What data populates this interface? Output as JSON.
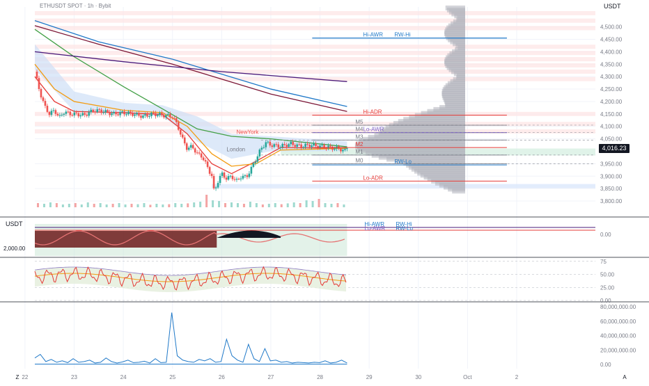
{
  "header": {
    "title": "ETHUSDT SPOT · 1h · Bybit",
    "unit_top": "USDT",
    "unit_panel2": "USDT",
    "current_price": "4,016.23"
  },
  "colors": {
    "bull": "#26a69a",
    "bear": "#ef5350",
    "ema_red": "#e53935",
    "ema_orange": "#f39c12",
    "ema_green": "#43a047",
    "ema_blue": "#1e78c8",
    "ema_maroon": "#7b1535",
    "ema_purple": "#4a1a7a",
    "profile": "#b0b3bb",
    "grid": "#f0f3fa"
  },
  "chart_data": [
    {
      "type": "candlestick",
      "title": "ETHUSDT SPOT · 1h · Bybit",
      "ylabel": "USDT",
      "ylim": [
        3775,
        4580
      ],
      "y_ticks": [
        "4,500.00",
        "4,450.00",
        "4,400.00",
        "4,350.00",
        "4,300.00",
        "4,250.00",
        "4,200.00",
        "4,150.00",
        "4,100.00",
        "4,050.00",
        "3,950.00",
        "3,900.00",
        "3,850.00",
        "3,800.00"
      ],
      "y_tick_values": [
        4500,
        4450,
        4400,
        4350,
        4300,
        4250,
        4200,
        4150,
        4100,
        4050,
        3950,
        3900,
        3850,
        3800
      ],
      "x_ticks": [
        "22",
        "23",
        "24",
        "25",
        "26",
        "27",
        "28",
        "29",
        "30",
        "Oct",
        "2"
      ],
      "x_tick_days": [
        22,
        23,
        24,
        25,
        26,
        27,
        28,
        29,
        30,
        31,
        32
      ],
      "x_range_days": [
        22.2,
        33.6
      ],
      "last_bar_day": 28.55,
      "close_path": [
        [
          22.2,
          4320
        ],
        [
          22.3,
          4240
        ],
        [
          22.4,
          4180
        ],
        [
          22.5,
          4150
        ],
        [
          22.6,
          4165
        ],
        [
          22.7,
          4135
        ],
        [
          22.8,
          4160
        ],
        [
          22.9,
          4150
        ],
        [
          23.0,
          4150
        ],
        [
          23.2,
          4145
        ],
        [
          23.4,
          4165
        ],
        [
          23.6,
          4160
        ],
        [
          23.8,
          4150
        ],
        [
          24.0,
          4155
        ],
        [
          24.2,
          4150
        ],
        [
          24.4,
          4140
        ],
        [
          24.6,
          4150
        ],
        [
          24.8,
          4145
        ],
        [
          25.0,
          4140
        ],
        [
          25.1,
          4105
        ],
        [
          25.2,
          4050
        ],
        [
          25.3,
          4010
        ],
        [
          25.4,
          4020
        ],
        [
          25.5,
          3990
        ],
        [
          25.6,
          3980
        ],
        [
          25.7,
          3940
        ],
        [
          25.8,
          3900
        ],
        [
          25.85,
          3830
        ],
        [
          25.9,
          3870
        ],
        [
          26.0,
          3910
        ],
        [
          26.1,
          3890
        ],
        [
          26.2,
          3900
        ],
        [
          26.3,
          3880
        ],
        [
          26.4,
          3900
        ],
        [
          26.5,
          3895
        ],
        [
          26.6,
          3930
        ],
        [
          26.7,
          3970
        ],
        [
          26.8,
          4010
        ],
        [
          26.9,
          4035
        ],
        [
          27.0,
          4025
        ],
        [
          27.2,
          4020
        ],
        [
          27.4,
          4030
        ],
        [
          27.6,
          4020
        ],
        [
          27.8,
          4025
        ],
        [
          28.0,
          4020
        ],
        [
          28.2,
          4015
        ],
        [
          28.4,
          4010
        ],
        [
          28.5,
          4000
        ],
        [
          28.55,
          4016.23
        ]
      ],
      "moving_averages": [
        {
          "color_key": "ema_red",
          "points": [
            [
              22.2,
              4300
            ],
            [
              22.6,
              4200
            ],
            [
              23.0,
              4160
            ],
            [
              24.0,
              4155
            ],
            [
              24.8,
              4148
            ],
            [
              25.3,
              4070
            ],
            [
              25.8,
              3950
            ],
            [
              26.2,
              3910
            ],
            [
              26.7,
              3960
            ],
            [
              27.2,
              4015
            ],
            [
              28.55,
              4012
            ]
          ]
        },
        {
          "color_key": "ema_orange",
          "points": [
            [
              22.2,
              4350
            ],
            [
              22.6,
              4250
            ],
            [
              23.0,
              4200
            ],
            [
              24.0,
              4165
            ],
            [
              24.8,
              4155
            ],
            [
              25.3,
              4100
            ],
            [
              25.8,
              3990
            ],
            [
              26.2,
              3940
            ],
            [
              26.7,
              3950
            ],
            [
              27.2,
              4005
            ],
            [
              28.55,
              4012
            ]
          ]
        },
        {
          "color_key": "ema_green",
          "points": [
            [
              22.2,
              4490
            ],
            [
              23.0,
              4380
            ],
            [
              24.0,
              4260
            ],
            [
              24.8,
              4170
            ],
            [
              25.5,
              4090
            ],
            [
              26.2,
              4060
            ],
            [
              27.0,
              4050
            ],
            [
              28.55,
              4018
            ]
          ]
        },
        {
          "color_key": "ema_blue",
          "points": [
            [
              22.2,
              4525
            ],
            [
              23.5,
              4440
            ],
            [
              25.0,
              4370
            ],
            [
              26.0,
              4310
            ],
            [
              27.0,
              4250
            ],
            [
              28.55,
              4180
            ]
          ]
        },
        {
          "color_key": "ema_maroon",
          "points": [
            [
              22.2,
              4505
            ],
            [
              23.5,
              4430
            ],
            [
              25.0,
              4350
            ],
            [
              26.0,
              4290
            ],
            [
              27.0,
              4230
            ],
            [
              28.55,
              4160
            ]
          ]
        },
        {
          "color_key": "ema_purple",
          "points": [
            [
              22.2,
              4400
            ],
            [
              24.0,
              4360
            ],
            [
              26.0,
              4320
            ],
            [
              28.55,
              4280
            ]
          ]
        }
      ],
      "levels": [
        {
          "label": "Hi-AWR",
          "value": 4455,
          "color": "#1e78c8"
        },
        {
          "label": "RW-Hi",
          "value": 4455,
          "color": "#1e78c8"
        },
        {
          "label": "Hi-ADR",
          "value": 4145,
          "color": "#e53935"
        },
        {
          "label": "M5",
          "value": 4105,
          "color": "#787b86"
        },
        {
          "label": "M4",
          "value": 4075,
          "color": "#787b86"
        },
        {
          "label": "Lo-AWR",
          "value": 4075,
          "color": "#7b61c8"
        },
        {
          "label": "M3",
          "value": 4045,
          "color": "#787b86"
        },
        {
          "label": "M2",
          "value": 4015,
          "color": "#e53935"
        },
        {
          "label": "M1",
          "value": 3985,
          "color": "#787b86"
        },
        {
          "label": "M0",
          "value": 3950,
          "color": "#787b86"
        },
        {
          "label": "RW-Lo",
          "value": 3945,
          "color": "#1e78c8"
        },
        {
          "label": "Lo-ADR",
          "value": 3880,
          "color": "#e53935"
        }
      ],
      "annotations": [
        "NewYork",
        "London"
      ]
    },
    {
      "type": "bar",
      "title": "volume",
      "values_rel": [
        0.3,
        0.25,
        0.35,
        0.3,
        0.2,
        0.25,
        0.3,
        0.2,
        0.35,
        0.25,
        0.3,
        0.2,
        0.25,
        0.3,
        0.2,
        0.25,
        0.22,
        0.3,
        0.18,
        0.25,
        0.2,
        0.22,
        0.3,
        0.25,
        0.28,
        0.35,
        0.4,
        0.9,
        0.5,
        0.45,
        0.3,
        0.35,
        0.3,
        0.25,
        0.4,
        0.3,
        0.2,
        0.25,
        0.3,
        0.22,
        0.28,
        0.35,
        0.3,
        0.5,
        0.45,
        0.6,
        0.3,
        0.25,
        0.3,
        0.2
      ]
    },
    {
      "type": "area",
      "ylabel": "USDT",
      "y_ticks": [
        "0.00"
      ],
      "y_tick_values": [
        0
      ],
      "left_label": "2,000.00",
      "legend_labels": [
        "Hi-AWR",
        "RW-Hi",
        "Lo-AWR",
        "RW-Lo"
      ]
    },
    {
      "type": "line",
      "y_ticks": [
        "75",
        "50.00",
        "25.00",
        "0.00"
      ],
      "y_tick_values": [
        75,
        50,
        25,
        0
      ],
      "ylim": [
        0,
        80
      ]
    },
    {
      "type": "line",
      "y_ticks": [
        "80,000,000.00",
        "60,000,000.00",
        "40,000,000.00",
        "20,000,000.00",
        "0.00"
      ],
      "y_tick_values": [
        80000000,
        60000000,
        40000000,
        20000000,
        0
      ],
      "ylim": [
        0,
        85000000
      ],
      "values": [
        9000000,
        14000000,
        4000000,
        7000000,
        3000000,
        5000000,
        2500000,
        8000000,
        3000000,
        4000000,
        6000000,
        2000000,
        3000000,
        9000000,
        4000000,
        2000000,
        3500000,
        6000000,
        2500000,
        3000000,
        4500000,
        2000000,
        8000000,
        2500000,
        3000000,
        72000000,
        12000000,
        6000000,
        4000000,
        3000000,
        7000000,
        5000000,
        8000000,
        3000000,
        4000000,
        35000000,
        12000000,
        6000000,
        3000000,
        28000000,
        8000000,
        4000000,
        22000000,
        5000000,
        6000000,
        3000000,
        4000000,
        2000000,
        3000000,
        2500000,
        2000000,
        3000000,
        2500000,
        5000000,
        2000000,
        3000000,
        6000000,
        2000000
      ]
    }
  ],
  "time_axis": {
    "left_icon": "Z",
    "right_icon": "A"
  }
}
